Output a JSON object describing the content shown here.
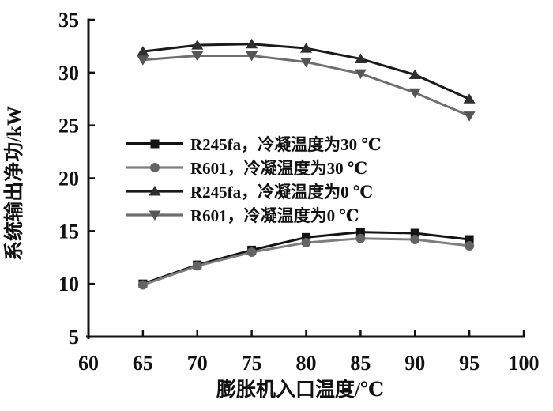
{
  "chart_data": {
    "type": "line",
    "title": "",
    "xlabel": "膨胀机入口温度/℃",
    "ylabel": "系统输出净功/kW",
    "xlim": [
      60,
      100
    ],
    "ylim": [
      5,
      35
    ],
    "xticks": [
      60,
      65,
      70,
      75,
      80,
      85,
      90,
      95,
      100
    ],
    "yticks": [
      5,
      10,
      15,
      20,
      25,
      30,
      35
    ],
    "x": [
      65,
      70,
      75,
      80,
      85,
      90,
      95
    ],
    "series": [
      {
        "name": "R245fa，冷凝温度为30 ℃",
        "marker": "square",
        "line_color": "#141414",
        "marker_color": "#141414",
        "values": [
          10.0,
          11.8,
          13.2,
          14.4,
          14.9,
          14.8,
          14.2
        ]
      },
      {
        "name": "R601，冷凝温度为30 ℃",
        "marker": "circle",
        "line_color": "#7d7d7d",
        "marker_color": "#646464",
        "values": [
          9.9,
          11.7,
          13.0,
          13.9,
          14.3,
          14.2,
          13.6
        ]
      },
      {
        "name": "R245fa，冷凝温度为0 ℃",
        "marker": "triangle-up",
        "line_color": "#1a1a1a",
        "marker_color": "#2e2e2e",
        "values": [
          32.0,
          32.6,
          32.7,
          32.3,
          31.3,
          29.8,
          27.5
        ]
      },
      {
        "name": "R601，冷凝温度为0 ℃",
        "marker": "triangle-down",
        "line_color": "#6e6e6e",
        "marker_color": "#565656",
        "values": [
          31.2,
          31.6,
          31.6,
          31.0,
          29.9,
          28.1,
          25.9
        ]
      }
    ],
    "grid": false,
    "legend_position": "center-left-inside"
  }
}
